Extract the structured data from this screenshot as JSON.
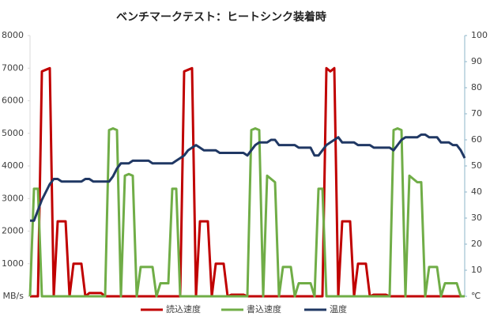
{
  "chart_data": {
    "type": "line",
    "title": "ベンチマークテスト：ヒートシンク装着時",
    "x": [
      0,
      1,
      2,
      3,
      4,
      5,
      6,
      7,
      8,
      9,
      10,
      11,
      12,
      13,
      14,
      15,
      16,
      17,
      18,
      19,
      20,
      21,
      22,
      23,
      24,
      25,
      26,
      27,
      28,
      29,
      30,
      31,
      32,
      33,
      34,
      35,
      36,
      37,
      38,
      39,
      40,
      41,
      42,
      43,
      44,
      45,
      46,
      47,
      48,
      49,
      50,
      51,
      52,
      53,
      54,
      55,
      56,
      57,
      58,
      59,
      60,
      61,
      62,
      63,
      64,
      65,
      66,
      67,
      68,
      69,
      70,
      71,
      72,
      73,
      74,
      75,
      76,
      77,
      78,
      79,
      80,
      81,
      82,
      83,
      84,
      85,
      86,
      87,
      88,
      89,
      90,
      91,
      92,
      93,
      94,
      95,
      96,
      97,
      98,
      99,
      100,
      101,
      102,
      103,
      104,
      105,
      106,
      107,
      108,
      109,
      110
    ],
    "xlim": [
      0,
      110
    ],
    "ylim": [
      0,
      8000
    ],
    "yticks": [
      {
        "value": 0,
        "label": "MB/s"
      },
      1000,
      2000,
      3000,
      4000,
      5000,
      6000,
      7000,
      8000
    ],
    "y2lim": [
      0,
      100
    ],
    "y2ticks": [
      {
        "value": 0,
        "label": "℃"
      },
      10,
      20,
      30,
      40,
      50,
      60,
      70,
      80,
      90,
      100
    ],
    "grid": false,
    "legend": "bottom",
    "series": [
      {
        "name": "読込速度",
        "color": "#c00000",
        "values": [
          0,
          0,
          0,
          6900,
          6950,
          7000,
          0,
          2300,
          2300,
          2300,
          0,
          1000,
          1000,
          1000,
          0,
          100,
          100,
          100,
          100,
          0,
          0,
          0,
          0,
          0,
          0,
          0,
          0,
          0,
          0,
          0,
          0,
          0,
          0,
          0,
          0,
          0,
          0,
          0,
          0,
          6900,
          6950,
          7000,
          0,
          2300,
          2300,
          2300,
          0,
          1000,
          1000,
          1000,
          0,
          50,
          50,
          50,
          50,
          0,
          0,
          0,
          0,
          0,
          0,
          0,
          0,
          0,
          0,
          0,
          0,
          0,
          0,
          0,
          0,
          0,
          0,
          0,
          0,
          7000,
          6900,
          7000,
          0,
          2300,
          2300,
          2300,
          0,
          1000,
          1000,
          1000,
          0,
          50,
          50,
          50,
          50,
          0,
          0,
          0,
          0,
          0,
          0,
          0,
          0,
          0,
          0,
          0,
          0,
          0,
          0,
          0,
          0,
          0,
          0,
          0,
          0
        ]
      },
      {
        "name": "書込速度",
        "color": "#70ad47",
        "values": [
          0,
          3300,
          3300,
          0,
          0,
          0,
          0,
          0,
          0,
          0,
          0,
          0,
          0,
          0,
          0,
          0,
          0,
          0,
          0,
          0,
          5100,
          5150,
          5100,
          0,
          3700,
          3750,
          3700,
          0,
          900,
          900,
          900,
          900,
          0,
          400,
          400,
          400,
          3300,
          3300,
          0,
          0,
          0,
          0,
          0,
          0,
          0,
          0,
          0,
          0,
          0,
          0,
          0,
          0,
          0,
          0,
          0,
          0,
          5100,
          5150,
          5100,
          0,
          3700,
          3600,
          3500,
          0,
          900,
          900,
          900,
          0,
          400,
          400,
          400,
          400,
          0,
          3300,
          3300,
          0,
          0,
          0,
          0,
          0,
          0,
          0,
          0,
          0,
          0,
          0,
          0,
          0,
          0,
          0,
          0,
          0,
          5100,
          5150,
          5100,
          0,
          3700,
          3600,
          3500,
          3500,
          0,
          900,
          900,
          900,
          0,
          400,
          400,
          400,
          400,
          0,
          0
        ]
      },
      {
        "name": "温度",
        "color": "#203864",
        "axis": "y2",
        "values": [
          29,
          29,
          33,
          37,
          40,
          43,
          45,
          45,
          44,
          44,
          44,
          44,
          44,
          44,
          45,
          45,
          44,
          44,
          44,
          44,
          44,
          46,
          49,
          51,
          51,
          51,
          52,
          52,
          52,
          52,
          52,
          51,
          51,
          51,
          51,
          51,
          51,
          52,
          53,
          54,
          56,
          57,
          58,
          57,
          56,
          56,
          56,
          56,
          55,
          55,
          55,
          55,
          55,
          55,
          55,
          54,
          56,
          58,
          59,
          59,
          59,
          60,
          60,
          58,
          58,
          58,
          58,
          58,
          57,
          57,
          57,
          57,
          54,
          54,
          56,
          58,
          59,
          60,
          61,
          59,
          59,
          59,
          59,
          58,
          58,
          58,
          58,
          57,
          57,
          57,
          57,
          57,
          56,
          58,
          60,
          61,
          61,
          61,
          61,
          62,
          62,
          61,
          61,
          61,
          59,
          59,
          59,
          58,
          58,
          56,
          53
        ]
      }
    ]
  }
}
